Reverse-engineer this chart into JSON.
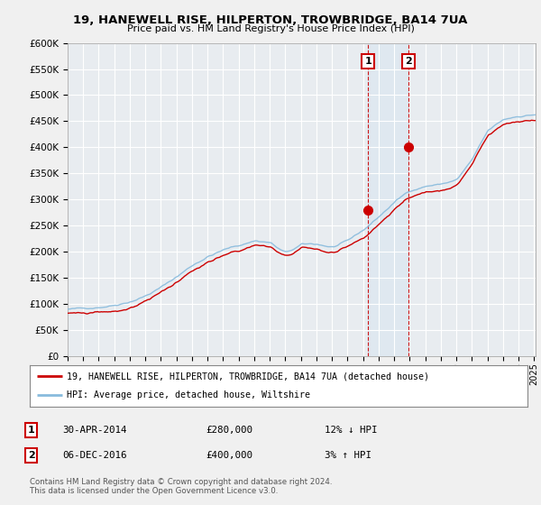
{
  "title": "19, HANEWELL RISE, HILPERTON, TROWBRIDGE, BA14 7UA",
  "subtitle": "Price paid vs. HM Land Registry's House Price Index (HPI)",
  "ylim": [
    0,
    600000
  ],
  "yticks": [
    0,
    50000,
    100000,
    150000,
    200000,
    250000,
    300000,
    350000,
    400000,
    450000,
    500000,
    550000,
    600000
  ],
  "xlim_start": 1995.0,
  "xlim_end": 2025.1,
  "transaction1": {
    "date": "30-APR-2014",
    "price": 280000,
    "label": "1",
    "year": 2014.33,
    "pct": "12% ↓ HPI"
  },
  "transaction2": {
    "date": "06-DEC-2016",
    "price": 400000,
    "label": "2",
    "year": 2016.92,
    "pct": "3% ↑ HPI"
  },
  "hpi_color": "#88bbdd",
  "price_color": "#cc0000",
  "legend1": "19, HANEWELL RISE, HILPERTON, TROWBRIDGE, BA14 7UA (detached house)",
  "legend2": "HPI: Average price, detached house, Wiltshire",
  "footnote": "Contains HM Land Registry data © Crown copyright and database right 2024.\nThis data is licensed under the Open Government Licence v3.0.",
  "background_color": "#f0f0f0",
  "plot_bg": "#e8e8e8",
  "grid_color": "#ffffff"
}
